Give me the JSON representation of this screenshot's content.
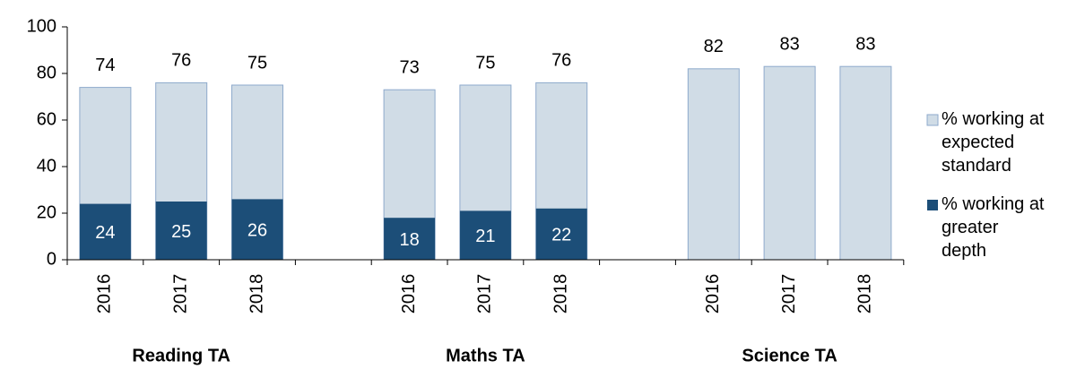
{
  "chart_data": {
    "type": "bar",
    "categories": [
      "2016",
      "2017",
      "2018",
      null,
      "2016",
      "2017",
      "2018",
      null,
      "2016",
      "2017",
      "2018"
    ],
    "groups": [
      "Reading TA",
      "Maths TA",
      "Science TA"
    ],
    "series": [
      {
        "name": "% working at expected standard",
        "color": "#d0dce6",
        "stroke": "#8eaacc",
        "values": [
          74,
          76,
          75,
          null,
          73,
          75,
          76,
          null,
          82,
          83,
          83
        ]
      },
      {
        "name": "% working at greater depth",
        "color": "#1c4e78",
        "values": [
          24,
          25,
          26,
          null,
          18,
          21,
          22,
          null,
          null,
          null,
          null
        ]
      }
    ],
    "ylim": [
      0,
      100
    ],
    "yticks": [
      0,
      20,
      40,
      60,
      80,
      100
    ],
    "grid": false,
    "legend": "right"
  }
}
